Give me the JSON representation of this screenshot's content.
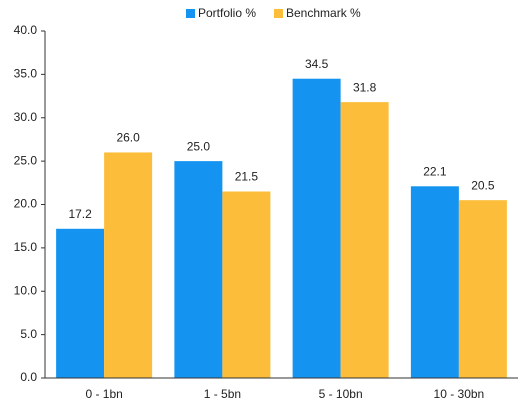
{
  "chart_data": {
    "type": "bar",
    "categories": [
      "0 - 1bn",
      "1 - 5bn",
      "5 - 10bn",
      "10 - 30bn"
    ],
    "series": [
      {
        "name": "Portfolio %",
        "color": "#1593f0",
        "values": [
          17.2,
          25.0,
          34.5,
          22.1
        ],
        "value_labels": [
          "17.2",
          "25.0",
          "34.5",
          "22.1"
        ]
      },
      {
        "name": "Benchmark %",
        "color": "#fbbd3a",
        "values": [
          26.0,
          21.5,
          31.8,
          20.5
        ],
        "value_labels": [
          "26.0",
          "21.5",
          "31.8",
          "20.5"
        ]
      }
    ],
    "ylim": [
      0,
      40
    ],
    "yticks": [
      {
        "value": 0,
        "label": "0.0"
      },
      {
        "value": 5,
        "label": "5.0"
      },
      {
        "value": 10,
        "label": "10.0"
      },
      {
        "value": 15,
        "label": "15.0"
      },
      {
        "value": 20,
        "label": "20.0"
      },
      {
        "value": 25,
        "label": "25.0"
      },
      {
        "value": 30,
        "label": "30.0"
      },
      {
        "value": 35,
        "label": "35.0"
      },
      {
        "value": 40,
        "label": "40.0"
      }
    ],
    "grid": false,
    "legend": "top"
  }
}
